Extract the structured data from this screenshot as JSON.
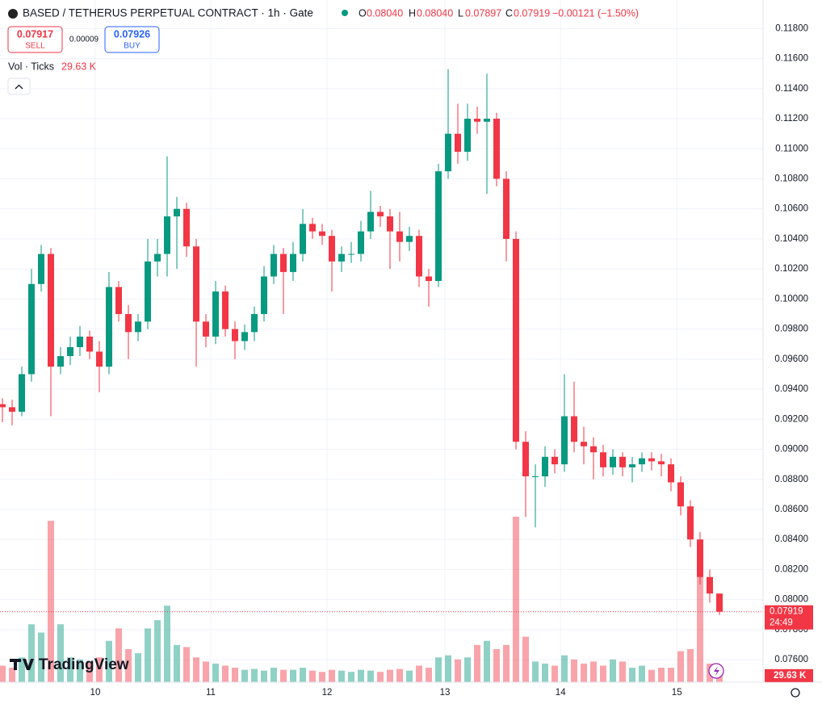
{
  "header": {
    "symbol": "BASED / TETHERUS PERPETUAL CONTRACT · 1h · Gate",
    "o_label": "O",
    "o_value": "0.08040",
    "h_label": "H",
    "h_value": "0.08040",
    "l_label": "L",
    "l_value": "0.07897",
    "c_label": "C",
    "c_value": "0.07919",
    "change": "−0.00121 (−1.50%)"
  },
  "trade": {
    "sell_price": "0.07917",
    "sell_label": "SELL",
    "spread": "0.00009",
    "buy_price": "0.07926",
    "buy_label": "BUY"
  },
  "legend": {
    "volume_title": "Vol · Ticks",
    "volume_value": "29.63 K"
  },
  "badges": {
    "price": "0.07919",
    "countdown": "24:49",
    "volume": "29.63 K"
  },
  "brand": "TradingView",
  "chart_data": {
    "type": "candlestick",
    "up_color": "#089981",
    "down_color": "#f23645",
    "grid": true,
    "open": [
      0.093,
      0.0928,
      0.0925,
      0.095,
      0.101,
      0.103,
      0.0955,
      0.0962,
      0.0968,
      0.0975,
      0.0965,
      0.0955,
      0.1008,
      0.099,
      0.0978,
      0.0985,
      0.1025,
      0.103,
      0.1055,
      0.106,
      0.1035,
      0.0985,
      0.0975,
      0.1005,
      0.098,
      0.0972,
      0.0978,
      0.099,
      0.1015,
      0.103,
      0.1018,
      0.103,
      0.105,
      0.1045,
      0.1042,
      0.1025,
      0.103,
      0.103,
      0.1045,
      0.1058,
      0.1055,
      0.1045,
      0.1038,
      0.1042,
      0.1015,
      0.1012,
      0.1085,
      0.111,
      0.1098,
      0.112,
      0.1118,
      0.112,
      0.108,
      0.104,
      0.0905,
      0.0882,
      0.0882,
      0.0895,
      0.089,
      0.0922,
      0.0905,
      0.0902,
      0.0898,
      0.0888,
      0.0895,
      0.0888,
      0.089,
      0.0894,
      0.0892,
      0.089,
      0.0878,
      0.0862,
      0.084,
      0.0815,
      0.0804
    ],
    "high": [
      0.0934,
      0.0933,
      0.0955,
      0.102,
      0.1036,
      0.1034,
      0.0968,
      0.0975,
      0.0982,
      0.0979,
      0.0972,
      0.1018,
      0.1012,
      0.0996,
      0.099,
      0.104,
      0.104,
      0.1095,
      0.1068,
      0.1064,
      0.104,
      0.099,
      0.1012,
      0.1009,
      0.0985,
      0.0983,
      0.0995,
      0.1022,
      0.1036,
      0.1034,
      0.1038,
      0.106,
      0.1054,
      0.105,
      0.1046,
      0.1035,
      0.1038,
      0.1052,
      0.1072,
      0.1062,
      0.106,
      0.1058,
      0.1048,
      0.1046,
      0.102,
      0.109,
      0.1153,
      0.113,
      0.113,
      0.1128,
      0.115,
      0.1124,
      0.1085,
      0.1045,
      0.0912,
      0.089,
      0.0902,
      0.09,
      0.095,
      0.0945,
      0.0915,
      0.0908,
      0.0903,
      0.09,
      0.0898,
      0.0895,
      0.0898,
      0.0898,
      0.0897,
      0.0894,
      0.0882,
      0.0866,
      0.0845,
      0.082,
      0.0804
    ],
    "low": [
      0.0918,
      0.0916,
      0.0922,
      0.0945,
      0.1005,
      0.0922,
      0.095,
      0.0956,
      0.0962,
      0.096,
      0.0938,
      0.095,
      0.0985,
      0.096,
      0.0972,
      0.098,
      0.1015,
      0.1015,
      0.102,
      0.1028,
      0.0955,
      0.0968,
      0.097,
      0.0975,
      0.096,
      0.0966,
      0.0972,
      0.0985,
      0.101,
      0.099,
      0.1012,
      0.1025,
      0.104,
      0.1036,
      0.1005,
      0.1018,
      0.1024,
      0.1025,
      0.104,
      0.1048,
      0.102,
      0.1025,
      0.1032,
      0.1008,
      0.0995,
      0.1008,
      0.108,
      0.109,
      0.1092,
      0.111,
      0.107,
      0.1075,
      0.1025,
      0.09,
      0.0855,
      0.0848,
      0.0875,
      0.0884,
      0.0885,
      0.0898,
      0.089,
      0.088,
      0.0882,
      0.0883,
      0.0882,
      0.0878,
      0.0885,
      0.0886,
      0.0882,
      0.0872,
      0.0856,
      0.0835,
      0.081,
      0.0798,
      0.07897
    ],
    "close": [
      0.0928,
      0.0925,
      0.095,
      0.101,
      0.103,
      0.0955,
      0.0962,
      0.0968,
      0.0975,
      0.0965,
      0.0955,
      0.1008,
      0.099,
      0.0978,
      0.0985,
      0.1025,
      0.103,
      0.1055,
      0.106,
      0.1035,
      0.0985,
      0.0975,
      0.1005,
      0.098,
      0.0972,
      0.0978,
      0.099,
      0.1015,
      0.103,
      0.1018,
      0.103,
      0.105,
      0.1045,
      0.1042,
      0.1025,
      0.103,
      0.103,
      0.1045,
      0.1058,
      0.1055,
      0.1045,
      0.1038,
      0.1042,
      0.1015,
      0.1012,
      0.1085,
      0.111,
      0.1098,
      0.112,
      0.1118,
      0.112,
      0.108,
      0.104,
      0.0905,
      0.0882,
      0.0882,
      0.0895,
      0.089,
      0.0922,
      0.0905,
      0.0902,
      0.0898,
      0.0888,
      0.0895,
      0.0888,
      0.089,
      0.0894,
      0.0892,
      0.089,
      0.0878,
      0.0862,
      0.084,
      0.0815,
      0.0804,
      0.07919
    ],
    "volumes": [
      40000,
      35000,
      60000,
      140000,
      120000,
      390000,
      140000,
      60000,
      55000,
      50000,
      60000,
      100000,
      130000,
      80000,
      70000,
      130000,
      150000,
      185000,
      90000,
      85000,
      60000,
      50000,
      45000,
      40000,
      35000,
      30000,
      32000,
      28000,
      35000,
      30000,
      30000,
      35000,
      28000,
      25000,
      30000,
      28000,
      25000,
      30000,
      28000,
      25000,
      30000,
      32000,
      28000,
      40000,
      35000,
      60000,
      65000,
      55000,
      60000,
      90000,
      100000,
      80000,
      90000,
      400000,
      110000,
      50000,
      45000,
      40000,
      65000,
      55000,
      45000,
      50000,
      40000,
      55000,
      50000,
      35000,
      40000,
      30000,
      35000,
      35000,
      75000,
      80000,
      280000,
      45000,
      29630
    ],
    "ylim": [
      0.0745,
      0.1199
    ],
    "yticks": [
      {
        "value": 0.118,
        "label": "0.11800"
      },
      {
        "value": 0.116,
        "label": "0.11600"
      },
      {
        "value": 0.114,
        "label": "0.11400"
      },
      {
        "value": 0.112,
        "label": "0.11200"
      },
      {
        "value": 0.11,
        "label": "0.11000"
      },
      {
        "value": 0.108,
        "label": "0.10800"
      },
      {
        "value": 0.106,
        "label": "0.10600"
      },
      {
        "value": 0.104,
        "label": "0.10400"
      },
      {
        "value": 0.102,
        "label": "0.10200"
      },
      {
        "value": 0.1,
        "label": "0.10000"
      },
      {
        "value": 0.098,
        "label": "0.09800"
      },
      {
        "value": 0.096,
        "label": "0.09600"
      },
      {
        "value": 0.094,
        "label": "0.09400"
      },
      {
        "value": 0.092,
        "label": "0.09200"
      },
      {
        "value": 0.09,
        "label": "0.09000"
      },
      {
        "value": 0.088,
        "label": "0.08800"
      },
      {
        "value": 0.086,
        "label": "0.08600"
      },
      {
        "value": 0.084,
        "label": "0.08400"
      },
      {
        "value": 0.082,
        "label": "0.08200"
      },
      {
        "value": 0.08,
        "label": "0.08000"
      },
      {
        "value": 0.078,
        "label": "0.07800"
      },
      {
        "value": 0.076,
        "label": "0.07600"
      }
    ],
    "xticks": [
      {
        "value": 9.58,
        "label": "10"
      },
      {
        "value": 21.5,
        "label": "11"
      },
      {
        "value": 33.5,
        "label": "12"
      },
      {
        "value": 45.67,
        "label": "13"
      },
      {
        "value": 57.6,
        "label": "14"
      },
      {
        "value": 69.6,
        "label": "15"
      }
    ]
  }
}
